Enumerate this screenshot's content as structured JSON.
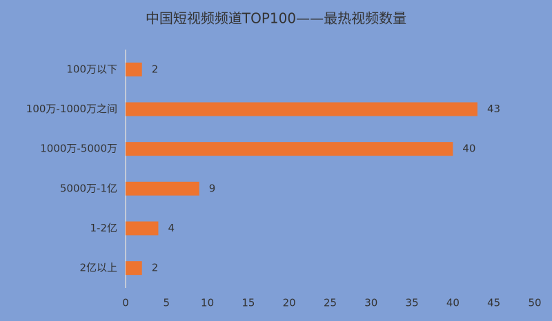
{
  "chart_data": {
    "type": "hbar",
    "title": "中国短视频频道TOP100——最热视频数量",
    "categories": [
      "100万以下",
      "100万-1000万之间",
      "1000万-5000万",
      "5000万-1亿",
      "1-2亿",
      "2亿以上"
    ],
    "values": [
      2,
      43,
      40,
      9,
      4,
      2
    ],
    "color": "#ed7430",
    "xlim": [
      0,
      50
    ],
    "xticks": [
      0,
      5,
      10,
      15,
      20,
      25,
      30,
      35,
      40,
      45,
      50
    ],
    "grid": false
  }
}
